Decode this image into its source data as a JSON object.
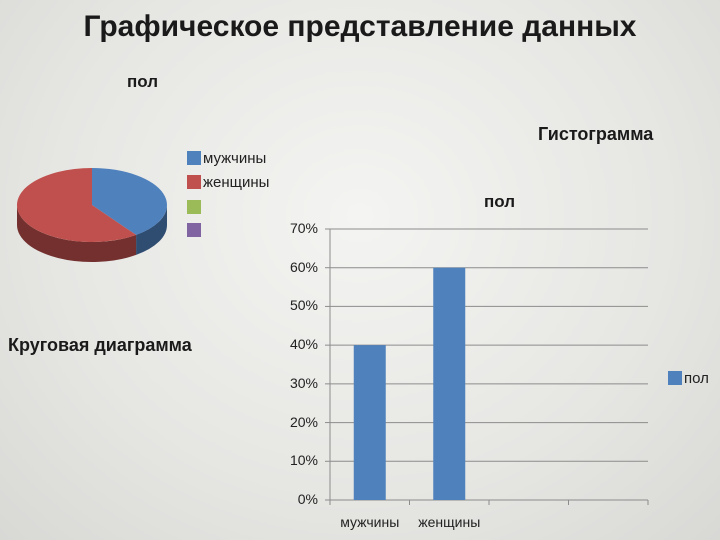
{
  "slide": {
    "title": "Графическое представление данных",
    "pie_caption": "Круговая диаграмма",
    "bar_caption": "Гистограмма"
  },
  "chart_data": [
    {
      "type": "pie",
      "title": "пол",
      "categories": [
        "мужчины",
        "женщины"
      ],
      "values": [
        0.4,
        0.6
      ],
      "legend": [
        "мужчины",
        "женщины",
        "",
        ""
      ],
      "legend_placement": "right",
      "colors": [
        "#4f81bd",
        "#c0504d",
        "#9bbb59",
        "#8064a2"
      ]
    },
    {
      "type": "bar",
      "title": "пол",
      "categories": [
        "мужчины",
        "женщины",
        "",
        ""
      ],
      "series": [
        {
          "name": "пол",
          "values": [
            0.4,
            0.6,
            null,
            null
          ]
        }
      ],
      "ylim": [
        0,
        0.7
      ],
      "yticks": [
        "0%",
        "10%",
        "20%",
        "30%",
        "40%",
        "50%",
        "60%",
        "70%"
      ],
      "grid": true,
      "legend_placement": "right",
      "color": "#4f81bd"
    }
  ]
}
